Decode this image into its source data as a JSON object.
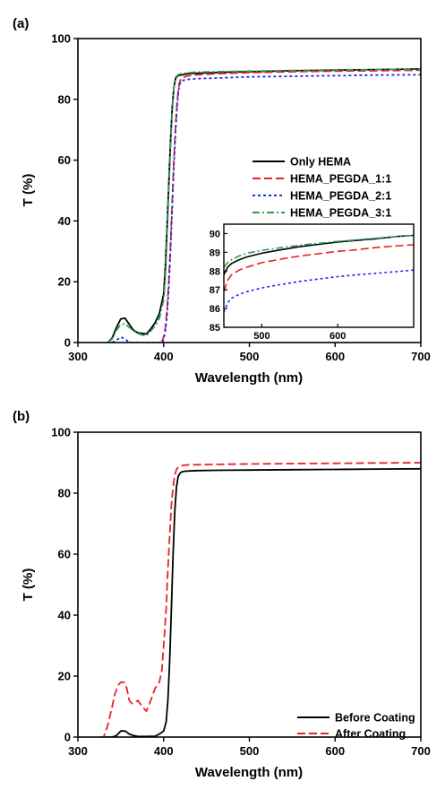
{
  "chart_data": [
    {
      "panel": "(a)",
      "type": "line",
      "xlabel": "Wavelength (nm)",
      "ylabel": "T (%)",
      "xlim": [
        300,
        700
      ],
      "ylim": [
        0,
        100
      ],
      "xticks": [
        300,
        400,
        500,
        600,
        700
      ],
      "yticks": [
        0,
        20,
        40,
        60,
        80,
        100
      ],
      "legend_position": "middle-right",
      "series": [
        {
          "name": "Only HEMA",
          "color": "#000000",
          "dash": "solid",
          "x": [
            335,
            340,
            345,
            350,
            355,
            360,
            365,
            370,
            375,
            380,
            385,
            390,
            395,
            400,
            402,
            404,
            406,
            408,
            410,
            412,
            414,
            416,
            418,
            420,
            425,
            430,
            440,
            460,
            480,
            500,
            550,
            600,
            650,
            700
          ],
          "y": [
            0,
            1.5,
            5,
            7.8,
            8,
            6,
            4,
            3.2,
            3,
            2.8,
            4.5,
            6.5,
            9.5,
            16,
            25,
            38,
            52,
            66,
            77,
            84,
            87,
            87.6,
            87.9,
            88,
            88.3,
            88.5,
            88.6,
            88.8,
            89,
            89.1,
            89.4,
            89.6,
            89.8,
            90
          ]
        },
        {
          "name": "HEMA_PEGDA_1:1",
          "color": "#e8232a",
          "dash": "long-dash",
          "x": [
            398,
            400,
            402,
            404,
            406,
            408,
            410,
            412,
            414,
            416,
            418,
            420,
            425,
            430,
            440,
            460,
            480,
            500,
            550,
            600,
            650,
            700
          ],
          "y": [
            0,
            2,
            5,
            11,
            20,
            32,
            46,
            60,
            72,
            80,
            85,
            86.8,
            87.5,
            87.8,
            88.1,
            88.4,
            88.6,
            88.8,
            89.1,
            89.3,
            89.4,
            89.6
          ]
        },
        {
          "name": "HEMA_PEGDA_2:1",
          "color": "#1a2ee8",
          "dash": "short-dash",
          "x": [
            340,
            345,
            350,
            355,
            360,
            395,
            398,
            400,
            402,
            404,
            406,
            408,
            410,
            412,
            414,
            416,
            418,
            420,
            425,
            430,
            440,
            460,
            480,
            500,
            550,
            600,
            650,
            700
          ],
          "y": [
            0,
            0.8,
            1.8,
            1.2,
            0,
            0,
            0,
            1,
            4,
            9,
            18,
            30,
            44,
            58,
            70,
            79,
            84,
            86,
            86.4,
            86.6,
            86.8,
            87,
            87.2,
            87.4,
            87.6,
            87.8,
            88,
            88.1
          ]
        },
        {
          "name": "HEMA_PEGDA_3:1",
          "color": "#2e9e55",
          "dash": "dash-dot",
          "x": [
            335,
            340,
            345,
            350,
            355,
            360,
            365,
            370,
            375,
            380,
            385,
            390,
            395,
            400,
            402,
            404,
            406,
            408,
            410,
            412,
            414,
            416,
            418,
            420,
            425,
            430,
            440,
            460,
            480,
            500,
            550,
            600,
            650,
            700
          ],
          "y": [
            0,
            1.2,
            4,
            6,
            6.2,
            5,
            3.8,
            3,
            2.5,
            2.2,
            3.8,
            5.5,
            8,
            14,
            22,
            35,
            50,
            64,
            76,
            84,
            87.2,
            87.9,
            88.2,
            88.4,
            88.6,
            88.8,
            89,
            89.1,
            89.2,
            89.3,
            89.5,
            89.7,
            89.8,
            89.9
          ]
        }
      ],
      "inset": {
        "xlim": [
          450,
          700
        ],
        "ylim": [
          85,
          90.5
        ],
        "xticks": [
          500,
          600
        ],
        "yticks": [
          85,
          86,
          87,
          88,
          89,
          90
        ],
        "series": [
          {
            "name": "Only HEMA",
            "x": [
              450,
              455,
              460,
              470,
              480,
              500,
              520,
              550,
              580,
              600,
              620,
              650,
              680,
              700
            ],
            "y": [
              87.8,
              88.2,
              88.4,
              88.6,
              88.75,
              88.95,
              89.1,
              89.3,
              89.45,
              89.55,
              89.62,
              89.72,
              89.85,
              89.9
            ]
          },
          {
            "name": "HEMA_PEGDA_1:1",
            "x": [
              450,
              455,
              460,
              470,
              480,
              500,
              520,
              550,
              580,
              600,
              620,
              650,
              680,
              700
            ],
            "y": [
              86.9,
              87.5,
              87.8,
              88.05,
              88.2,
              88.45,
              88.6,
              88.8,
              88.95,
              89.05,
              89.12,
              89.25,
              89.35,
              89.4
            ]
          },
          {
            "name": "HEMA_PEGDA_2:1",
            "x": [
              450,
              455,
              460,
              470,
              480,
              500,
              520,
              550,
              580,
              600,
              620,
              650,
              680,
              700
            ],
            "y": [
              85.8,
              86.3,
              86.55,
              86.75,
              86.9,
              87.1,
              87.25,
              87.45,
              87.6,
              87.7,
              87.78,
              87.88,
              87.98,
              88.05
            ]
          },
          {
            "name": "HEMA_PEGDA_3:1",
            "x": [
              450,
              455,
              460,
              470,
              480,
              500,
              520,
              550,
              580,
              600,
              620,
              650,
              680,
              700
            ],
            "y": [
              88.2,
              88.45,
              88.6,
              88.8,
              88.95,
              89.1,
              89.22,
              89.38,
              89.5,
              89.58,
              89.65,
              89.75,
              89.85,
              89.9
            ]
          }
        ]
      }
    },
    {
      "panel": "(b)",
      "type": "line",
      "xlabel": "Wavelength (nm)",
      "ylabel": "T (%)",
      "xlim": [
        300,
        700
      ],
      "ylim": [
        0,
        100
      ],
      "xticks": [
        300,
        400,
        500,
        600,
        700
      ],
      "yticks": [
        0,
        20,
        40,
        60,
        80,
        100
      ],
      "legend_position": "bottom-right",
      "series": [
        {
          "name": "Before Coating",
          "color": "#000000",
          "dash": "solid",
          "x": [
            330,
            340,
            345,
            350,
            355,
            360,
            365,
            370,
            380,
            390,
            395,
            400,
            403,
            405,
            407,
            409,
            411,
            413,
            415,
            417,
            419,
            421,
            425,
            430,
            440,
            460,
            500,
            550,
            600,
            650,
            700
          ],
          "y": [
            0,
            0,
            0.5,
            2,
            2,
            1,
            0.5,
            0.2,
            0.2,
            0.3,
            1,
            2,
            5,
            12,
            25,
            42,
            60,
            74,
            82,
            85.5,
            86.5,
            87,
            87.2,
            87.3,
            87.4,
            87.5,
            87.6,
            87.7,
            87.8,
            87.9,
            88
          ]
        },
        {
          "name": "After Coating",
          "color": "#e8232a",
          "dash": "long-dash",
          "x": [
            325,
            330,
            335,
            340,
            343,
            347,
            350,
            354,
            357,
            360,
            363,
            367,
            370,
            375,
            380,
            385,
            390,
            395,
            398,
            400,
            403,
            405,
            407,
            409,
            411,
            413,
            415,
            417,
            420,
            425,
            430,
            450,
            500,
            550,
            600,
            650,
            700
          ],
          "y": [
            0,
            0,
            4,
            10,
            14,
            17,
            18,
            18,
            16,
            12,
            11,
            11.5,
            12,
            10,
            8.5,
            12,
            16,
            18,
            22,
            30,
            42,
            55,
            66,
            76,
            82,
            86,
            87.8,
            88.5,
            89,
            89.2,
            89.3,
            89.4,
            89.6,
            89.7,
            89.8,
            89.9,
            90
          ]
        }
      ]
    }
  ]
}
